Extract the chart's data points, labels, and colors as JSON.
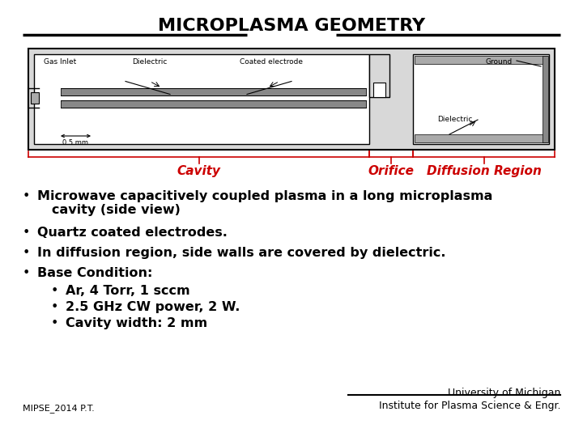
{
  "title": "MICROPLASMA GEOMETRY",
  "title_fontsize": 16,
  "bg_color": "#ffffff",
  "red_color": "#cc0000",
  "black_color": "#000000",
  "label_cavity": "Cavity",
  "label_orifice": "Orifice",
  "label_diffusion": "Diffusion Region",
  "label_gas_inlet": "Gas Inlet",
  "label_dielectric_left": "Dielectric",
  "label_coated_electrode": "Coated electrode",
  "label_ground": "Ground",
  "label_dielectric_right": "Dielectric",
  "label_scale": "0.5 mm",
  "bullet1a": "Microwave capacitively coupled plasma in a long microplasma",
  "bullet1b": "cavity (side view)",
  "bullet2": "Quartz coated electrodes.",
  "bullet3": "In diffusion region, side walls are covered by dielectric.",
  "bullet4": "Base Condition:",
  "sub1": "Ar, 4 Torr, 1 sccm",
  "sub2": "2.5 GHz CW power, 2 W.",
  "sub3": "Cavity width: 2 mm",
  "footer_left": "MIPSE_2014 P.T.",
  "footer_right1": "University of Michigan",
  "footer_right2": "Institute for Plasma Science & Engr.",
  "text_fontsize": 11.5,
  "diagram_fontsize": 6.5
}
